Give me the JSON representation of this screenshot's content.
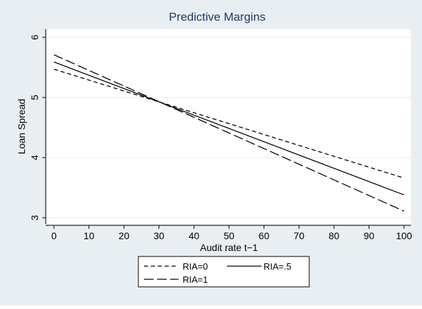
{
  "chart_data": {
    "type": "line",
    "title": "Predictive Margins",
    "xlabel": "Audit rate t−1",
    "ylabel": "Loan Spread",
    "xlim": [
      0,
      100
    ],
    "ylim": [
      3,
      6
    ],
    "xticks": [
      0,
      10,
      20,
      30,
      40,
      50,
      60,
      70,
      80,
      90,
      100
    ],
    "xtick_labels": [
      "0",
      "10",
      "20",
      "30",
      "40",
      "50",
      "60",
      "70",
      "80",
      "90",
      "100"
    ],
    "yticks": [
      3,
      4,
      5,
      6
    ],
    "ytick_labels": [
      "3",
      "4",
      "5",
      "6"
    ],
    "grid": true,
    "legend_position": "bottom",
    "x": [
      0,
      100
    ],
    "series": [
      {
        "name": "RIA=0",
        "values": [
          5.47,
          3.66
        ],
        "style": "short-dash"
      },
      {
        "name": "RIA=.5",
        "values": [
          5.59,
          3.38
        ],
        "style": "solid"
      },
      {
        "name": "RIA=1",
        "values": [
          5.71,
          3.11
        ],
        "style": "long-dash"
      }
    ],
    "colors": {
      "background": "#e9eef2",
      "plot_background": "#ffffff",
      "line": "#000000",
      "title": "#1e3b63"
    }
  }
}
